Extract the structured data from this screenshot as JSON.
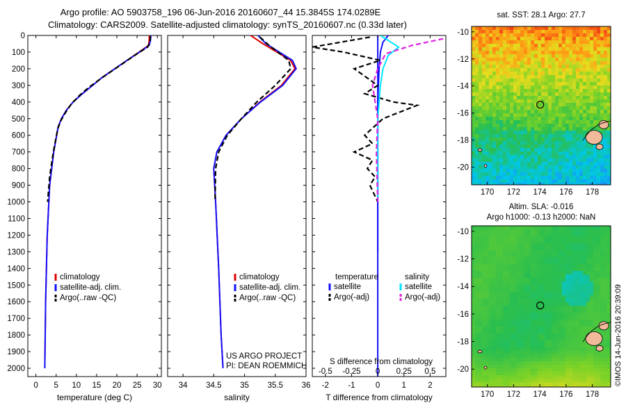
{
  "header": {
    "line1": "Argo profile: AO 5903758_196 06-Jun-2016 20160607_44 15.3845S 174.0289E",
    "line2": "Climatology: CARS2009. Satellite-adjusted climatology: synTS_20160607.nc (0.33d later)"
  },
  "colors": {
    "climatology": "#e00000",
    "satellite": "#1010ff",
    "argo": "#000000",
    "salinity_satellite": "#00e5ff",
    "salinity_argo": "#e020e0"
  },
  "chart_data": [
    {
      "type": "line",
      "id": "temperature",
      "xlabel": "temperature (deg C)",
      "xlim": [
        -2,
        31
      ],
      "xticks": [
        0,
        5,
        10,
        15,
        20,
        25,
        30
      ],
      "ylim": [
        0,
        2050
      ],
      "ylim_reversed": true,
      "yticks": [
        0,
        100,
        200,
        300,
        400,
        500,
        600,
        700,
        800,
        900,
        1000,
        1100,
        1200,
        1300,
        1400,
        1500,
        1600,
        1700,
        1800,
        1900,
        2000
      ],
      "legend": [
        "climatology",
        "satellite-adj. clim.",
        "Argo(..raw -QC)"
      ],
      "series": [
        {
          "name": "climatology",
          "style": "solid",
          "color": "#e00000",
          "x": [
            28.0,
            28.0,
            27.8,
            25.5,
            22.5,
            19.5,
            16.5,
            14.0,
            11.5,
            9.2,
            7.5,
            6.3,
            5.5,
            4.4,
            3.4,
            2.8,
            2.4,
            2.2
          ],
          "y": [
            0,
            30,
            60,
            100,
            150,
            200,
            250,
            300,
            350,
            400,
            450,
            500,
            550,
            700,
            900,
            1200,
            1600,
            2000
          ]
        },
        {
          "name": "satellite-adj. clim.",
          "style": "solid",
          "color": "#1010ff",
          "x": [
            28.4,
            28.3,
            28.0,
            25.6,
            22.5,
            19.5,
            16.5,
            14.0,
            11.5,
            9.2,
            7.5,
            6.3,
            5.5,
            4.4,
            3.4,
            2.8,
            2.4,
            2.2
          ],
          "y": [
            0,
            30,
            60,
            100,
            150,
            200,
            250,
            300,
            350,
            400,
            450,
            500,
            550,
            700,
            900,
            1200,
            1600,
            2000
          ]
        },
        {
          "name": "Argo(..raw -QC)",
          "style": "dashed",
          "color": "#000000",
          "x": [
            28.3,
            28.2,
            27.6,
            25.0,
            22.0,
            19.0,
            16.0,
            13.2,
            10.8,
            8.8,
            7.4,
            6.2,
            5.4,
            4.3,
            3.4,
            2.9
          ],
          "y": [
            5,
            40,
            70,
            110,
            160,
            210,
            260,
            310,
            360,
            410,
            460,
            510,
            560,
            700,
            850,
            1000
          ]
        }
      ]
    },
    {
      "type": "line",
      "id": "salinity",
      "xlabel": "salinity",
      "xlim": [
        33.75,
        36.0
      ],
      "xticks": [
        34,
        34.5,
        35,
        35.5,
        36
      ],
      "ylim": [
        0,
        2050
      ],
      "ylim_reversed": true,
      "legend": [
        "climatology",
        "satellite-adj. clim.",
        "Argo(..raw -QC)"
      ],
      "series": [
        {
          "name": "climatology",
          "style": "solid",
          "color": "#e00000",
          "x": [
            35.1,
            35.3,
            35.75,
            35.82,
            35.6,
            35.25,
            34.95,
            34.7,
            34.55,
            34.5,
            34.53,
            34.58,
            34.62,
            34.65
          ],
          "y": [
            0,
            50,
            150,
            200,
            300,
            400,
            500,
            600,
            700,
            800,
            1000,
            1400,
            1800,
            2000
          ]
        },
        {
          "name": "satellite-adj. clim.",
          "style": "solid",
          "color": "#1010ff",
          "x": [
            35.22,
            35.35,
            35.78,
            35.84,
            35.62,
            35.26,
            34.95,
            34.7,
            34.55,
            34.5,
            34.53,
            34.58,
            34.62,
            34.65
          ],
          "y": [
            0,
            50,
            150,
            200,
            300,
            400,
            500,
            600,
            700,
            800,
            1000,
            1400,
            1800,
            2000
          ]
        },
        {
          "name": "Argo(..raw -QC)",
          "style": "dashed",
          "color": "#000000",
          "x": [
            35.25,
            35.4,
            35.72,
            35.75,
            35.5,
            35.2,
            34.95,
            34.72,
            34.58,
            34.53,
            34.52
          ],
          "y": [
            10,
            60,
            150,
            200,
            300,
            400,
            500,
            600,
            700,
            800,
            1000
          ]
        }
      ],
      "annotations": [
        "US ARGO PROJECT",
        "PI: DEAN ROEMMICH"
      ]
    },
    {
      "type": "line",
      "id": "difference",
      "xlabel": "T difference from climatology",
      "top_axis_label": "S difference from climatology",
      "xlim": [
        -2.5,
        2.6
      ],
      "xticks": [
        -2,
        -1,
        0,
        1,
        2
      ],
      "top_xticks_s": [
        -0.5,
        -0.25,
        0,
        0.25,
        0.5
      ],
      "ylim": [
        0,
        2050
      ],
      "ylim_reversed": true,
      "legend": [
        "temperature",
        "satellite",
        "Argo(-adj)",
        "salinity",
        "satellite",
        "Argo(-adj)"
      ],
      "series": [
        {
          "name": "temperature satellite",
          "style": "solid",
          "color": "#1010ff",
          "x": [
            0.4,
            0.2,
            0.1,
            0.05,
            0.0,
            0.0,
            0.0,
            0.0
          ],
          "y": [
            0,
            40,
            100,
            200,
            400,
            600,
            1000,
            1300
          ]
        },
        {
          "name": "temperature Argo(-adj)",
          "style": "dashed",
          "color": "#000000",
          "x": [
            -0.3,
            -2.5,
            -1.3,
            0.1,
            -0.9,
            0.0,
            -0.5,
            0.6,
            1.5,
            0.2,
            -0.5,
            -0.2,
            -0.9,
            -0.2,
            -0.4,
            -0.1,
            -0.3,
            0.0
          ],
          "y": [
            10,
            70,
            100,
            150,
            200,
            300,
            350,
            400,
            420,
            500,
            600,
            650,
            700,
            750,
            800,
            850,
            900,
            1000
          ]
        },
        {
          "name": "salinity satellite",
          "style": "solid",
          "color": "#00e5ff",
          "x": [
            0.1,
            0.8,
            0.4,
            0.2,
            0.1,
            0.0,
            0.0
          ],
          "y": [
            0,
            70,
            120,
            200,
            300,
            500,
            1000
          ]
        },
        {
          "name": "salinity Argo(-adj)",
          "style": "dashed",
          "color": "#e020e0",
          "x": [
            2.5,
            1.3,
            0.3,
            0.0,
            -0.2,
            -0.1,
            0.0,
            -0.05,
            0.0
          ],
          "y": [
            20,
            60,
            110,
            200,
            300,
            400,
            500,
            700,
            1000
          ]
        }
      ]
    },
    {
      "type": "heatmap",
      "id": "sst-map",
      "title": "sat. SST: 28.1  Argo: 27.7",
      "xticks": [
        170,
        172,
        174,
        176,
        178
      ],
      "yticks": [
        -10,
        -12,
        -14,
        -16,
        -18,
        -20
      ],
      "xlim": [
        168.8,
        179.4
      ],
      "ylim": [
        -21.3,
        -9.6
      ],
      "marker": {
        "lon": 174.03,
        "lat": -15.38
      }
    },
    {
      "type": "heatmap",
      "id": "sla-map",
      "title": "Altim. SLA: -0.016",
      "subtitle": "Argo h1000: -0.13  h2000: NaN",
      "xticks": [
        170,
        172,
        174,
        176,
        178
      ],
      "yticks": [
        -10,
        -12,
        -14,
        -16,
        -18,
        -20
      ],
      "xlim": [
        168.8,
        179.4
      ],
      "ylim": [
        -21.3,
        -9.6
      ],
      "marker": {
        "lon": 174.03,
        "lat": -15.38
      }
    }
  ],
  "legend_text": {
    "temp_title": "temperature",
    "sal_title": "salinity",
    "satellite": "satellite",
    "argo_adj": "Argo(-adj)"
  },
  "footer": {
    "stamp": "©IMOS 14-Jun-2016 20:39:09"
  }
}
